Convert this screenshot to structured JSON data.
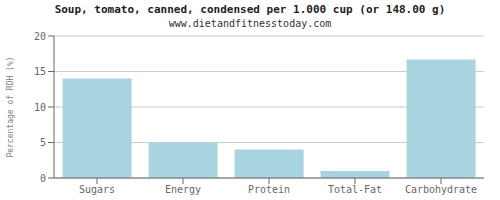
{
  "chart_data": {
    "type": "bar",
    "title": "Soup, tomato, canned, condensed per 1.000 cup (or 148.00 g)",
    "subtitle": "www.dietandfitnesstoday.com",
    "ylabel": "Percentage of RDH (%)",
    "categories": [
      "Sugars",
      "Energy",
      "Protein",
      "Total-Fat",
      "Carbohydrate"
    ],
    "values": [
      14.0,
      5.0,
      4.0,
      1.0,
      16.7
    ],
    "color": "#a8d4e0",
    "ylim": [
      0,
      20
    ],
    "yticks": [
      0,
      5,
      10,
      15,
      20
    ],
    "grid": true
  }
}
